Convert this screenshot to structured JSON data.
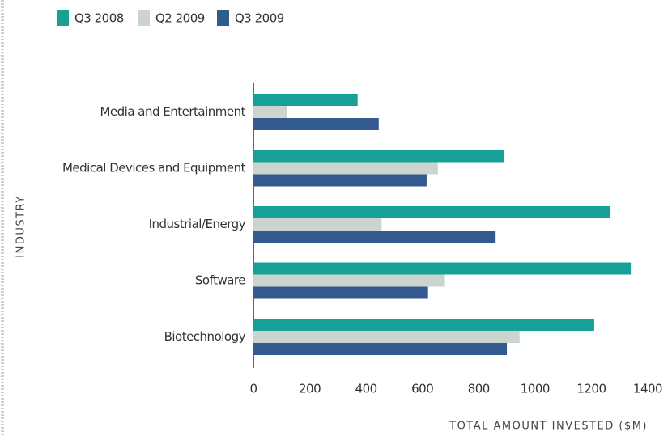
{
  "chart_data": {
    "type": "hbar",
    "categories": [
      "Media and Entertainment",
      "Medical Devices and Equipment",
      "Industrial/Energy",
      "Software",
      "Biotechnology"
    ],
    "series": [
      {
        "name": "Q3 2008",
        "color": "#17a097",
        "values": [
          370,
          890,
          1265,
          1340,
          1210
        ]
      },
      {
        "name": "Q2 2009",
        "color": "#cbd5cd",
        "values": [
          120,
          655,
          455,
          680,
          945
        ]
      },
      {
        "name": "Q3 2009",
        "color": "#335a8f",
        "values": [
          445,
          615,
          860,
          620,
          900
        ]
      }
    ],
    "xlim": [
      0,
      1400
    ],
    "xticks": [
      0,
      200,
      400,
      600,
      800,
      1000,
      1200,
      1400
    ],
    "xlabel": "TOTAL AMOUNT INVESTED ($M)",
    "ylabel": "INDUSTRY",
    "legend": "top-left"
  }
}
